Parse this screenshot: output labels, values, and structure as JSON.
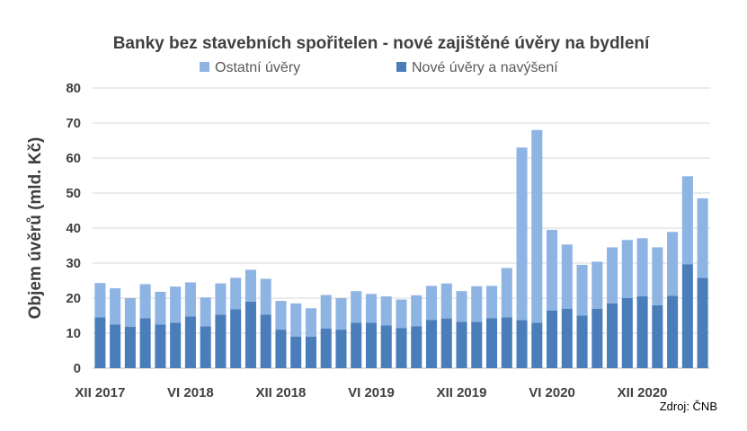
{
  "chart_data": {
    "type": "bar",
    "stacked": true,
    "title": "Banky bez stavebních spořitelen - nové zajištěné úvěry na bydlení",
    "ylabel": "Objem úvěrů (mld. Kč)",
    "xlabel": "",
    "ylim": [
      0,
      80
    ],
    "yticks": [
      0,
      10,
      20,
      30,
      40,
      50,
      60,
      70,
      80
    ],
    "grid": true,
    "legend_position": "top",
    "x_tick_labels": [
      {
        "label": "XII 2017",
        "index": 0
      },
      {
        "label": "VI 2018",
        "index": 6
      },
      {
        "label": "XII 2018",
        "index": 12
      },
      {
        "label": "VI 2019",
        "index": 18
      },
      {
        "label": "XII 2019",
        "index": 24
      },
      {
        "label": "VI 2020",
        "index": 30
      },
      {
        "label": "XII 2020",
        "index": 36
      }
    ],
    "series": [
      {
        "name": "Nové úvěry a navýšení",
        "color": "#4a7ebb",
        "values": [
          14.5,
          12.5,
          11.8,
          14.3,
          12.5,
          13.0,
          14.8,
          12.0,
          15.3,
          16.8,
          19.0,
          15.3,
          11.0,
          9.0,
          9.0,
          11.3,
          11.0,
          13.0,
          13.0,
          12.2,
          11.5,
          12.0,
          13.8,
          14.2,
          13.2,
          13.2,
          14.3,
          14.5,
          13.7,
          13.0,
          16.5,
          17.0,
          15.0,
          17.0,
          18.5,
          20.0,
          20.5,
          18.0,
          20.7,
          29.7,
          25.8
        ]
      },
      {
        "name": "Ostatní úvěry",
        "color": "#8eb4e3",
        "values": [
          9.8,
          10.3,
          8.2,
          9.7,
          9.3,
          10.3,
          9.7,
          8.2,
          8.9,
          9.0,
          9.1,
          10.2,
          8.2,
          9.5,
          8.1,
          9.6,
          9.0,
          9.0,
          8.2,
          8.3,
          8.1,
          8.8,
          9.7,
          10.0,
          8.8,
          10.2,
          9.2,
          14.1,
          49.3,
          55.0,
          23.0,
          18.3,
          14.5,
          13.4,
          16.0,
          16.6,
          16.6,
          16.5,
          18.2,
          25.1,
          22.7
        ]
      }
    ],
    "source": "Zdroj: ČNB"
  }
}
